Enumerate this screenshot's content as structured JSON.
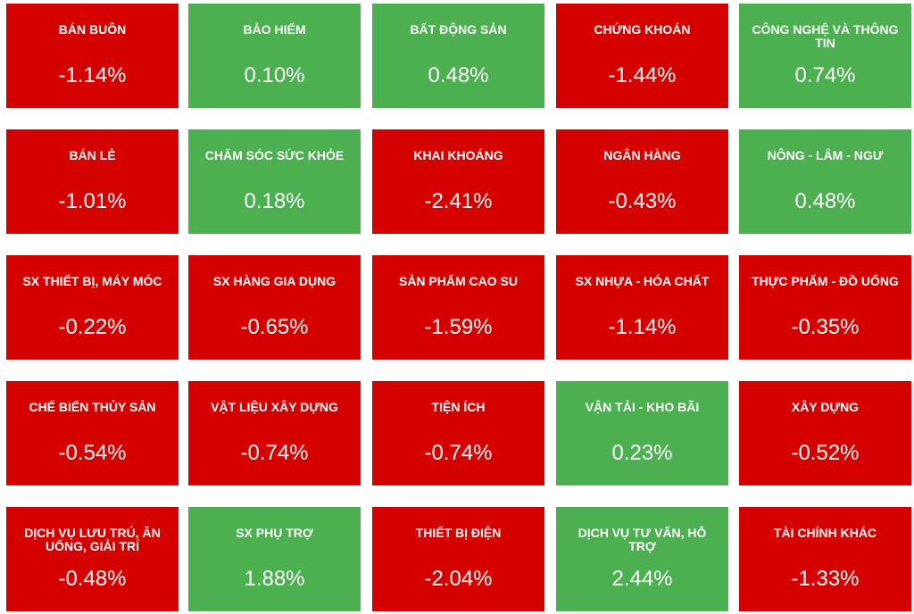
{
  "tiles": [
    {
      "name": "BÁN BUÔN",
      "value": "-1.14%",
      "color": "#d50000"
    },
    {
      "name": "BẢO HIỂM",
      "value": "0.10%",
      "color": "#4caf50"
    },
    {
      "name": "BẤT ĐỘNG SẢN",
      "value": "0.48%",
      "color": "#4caf50"
    },
    {
      "name": "CHỨNG KHOÁN",
      "value": "-1.44%",
      "color": "#d50000"
    },
    {
      "name": "CÔNG NGHỆ VÀ THÔNG TIN",
      "value": "0.74%",
      "color": "#4caf50"
    },
    {
      "name": "BÁN LẺ",
      "value": "-1.01%",
      "color": "#d50000"
    },
    {
      "name": "CHĂM SÓC SỨC KHỎE",
      "value": "0.18%",
      "color": "#4caf50"
    },
    {
      "name": "KHAI KHOÁNG",
      "value": "-2.41%",
      "color": "#d50000"
    },
    {
      "name": "NGÂN HÀNG",
      "value": "-0.43%",
      "color": "#d50000"
    },
    {
      "name": "NÔNG - LÂM - NGƯ",
      "value": "0.48%",
      "color": "#4caf50"
    },
    {
      "name": "SX THIẾT BỊ, MÁY MÓC",
      "value": "-0.22%",
      "color": "#d50000"
    },
    {
      "name": "SX HÀNG GIA DỤNG",
      "value": "-0.65%",
      "color": "#d50000"
    },
    {
      "name": "SẢN PHẨM CAO SU",
      "value": "-1.59%",
      "color": "#d50000"
    },
    {
      "name": "SX NHỰA - HÓA CHẤT",
      "value": "-1.14%",
      "color": "#d50000"
    },
    {
      "name": "THỰC PHẨM - ĐỒ UỐNG",
      "value": "-0.35%",
      "color": "#d50000"
    },
    {
      "name": "CHẾ BIẾN THỦY SẢN",
      "value": "-0.54%",
      "color": "#d50000"
    },
    {
      "name": "VẬT LIỆU XÂY DỰNG",
      "value": "-0.74%",
      "color": "#d50000"
    },
    {
      "name": "TIỆN ÍCH",
      "value": "-0.74%",
      "color": "#d50000"
    },
    {
      "name": "VẬN TẢI - KHO BÃI",
      "value": "0.23%",
      "color": "#4caf50"
    },
    {
      "name": "XÂY DỰNG",
      "value": "-0.52%",
      "color": "#d50000"
    },
    {
      "name": "DỊCH VỤ LƯU TRÚ, ĂN UỐNG, GIẢI TRÍ",
      "value": "-0.48%",
      "color": "#d50000"
    },
    {
      "name": "SX PHỤ TRỢ",
      "value": "1.88%",
      "color": "#4caf50"
    },
    {
      "name": "THIẾT BỊ ĐIỆN",
      "value": "-2.04%",
      "color": "#d50000"
    },
    {
      "name": "DỊCH VỤ TƯ VẤN, HỖ TRỢ",
      "value": "2.44%",
      "color": "#4caf50"
    },
    {
      "name": "TÀI CHÍNH KHÁC",
      "value": "-1.33%",
      "color": "#d50000"
    }
  ]
}
